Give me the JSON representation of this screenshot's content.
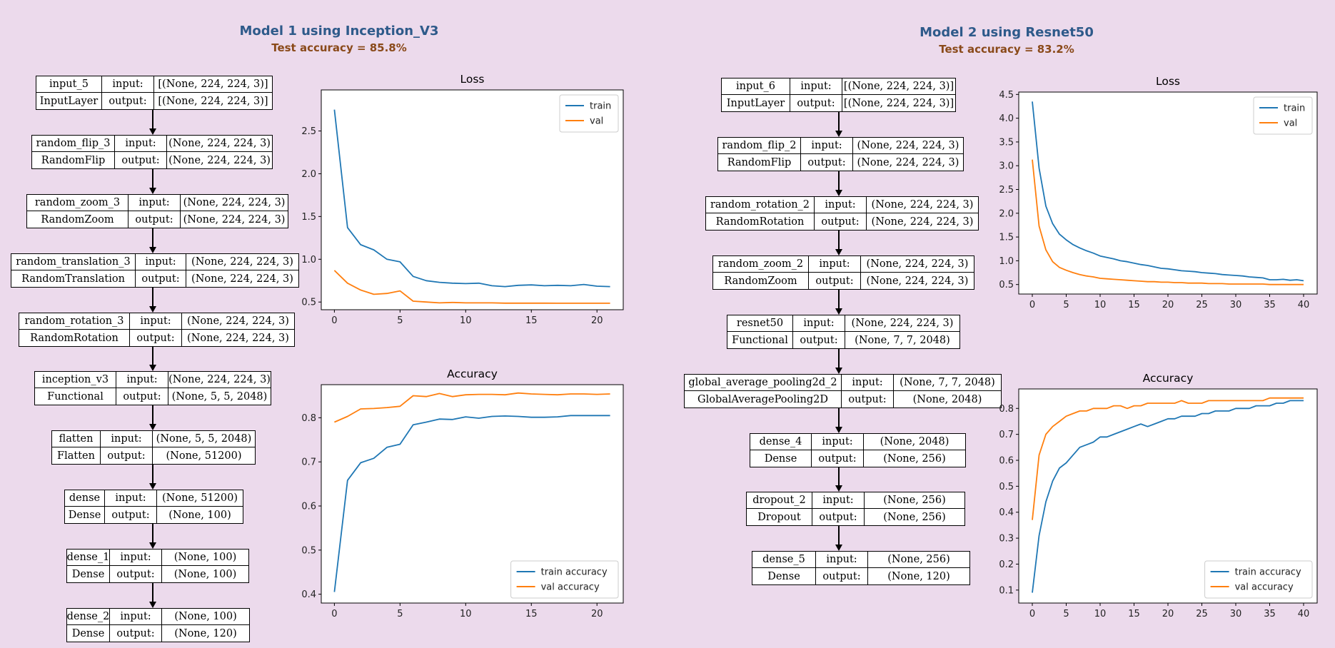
{
  "model1": {
    "title": "Model 1 using Inception_V3",
    "subtitle": "Test accuracy = 85.8%",
    "layers": [
      {
        "name": "input_5",
        "type": "InputLayer",
        "input": "[(None, 224, 224, 3)]",
        "output": "[(None, 224, 224, 3)]"
      },
      {
        "name": "random_flip_3",
        "type": "RandomFlip",
        "input": "(None, 224, 224, 3)",
        "output": "(None, 224, 224, 3)"
      },
      {
        "name": "random_zoom_3",
        "type": "RandomZoom",
        "input": "(None, 224, 224, 3)",
        "output": "(None, 224, 224, 3)"
      },
      {
        "name": "random_translation_3",
        "type": "RandomTranslation",
        "input": "(None, 224, 224, 3)",
        "output": "(None, 224, 224, 3)"
      },
      {
        "name": "random_rotation_3",
        "type": "RandomRotation",
        "input": "(None, 224, 224, 3)",
        "output": "(None, 224, 224, 3)"
      },
      {
        "name": "inception_v3",
        "type": "Functional",
        "input": "(None, 224, 224, 3)",
        "output": "(None, 5, 5, 2048)"
      },
      {
        "name": "flatten",
        "type": "Flatten",
        "input": "(None, 5, 5, 2048)",
        "output": "(None, 51200)"
      },
      {
        "name": "dense",
        "type": "Dense",
        "input": "(None, 51200)",
        "output": "(None, 100)"
      },
      {
        "name": "dense_1",
        "type": "Dense",
        "input": "(None, 100)",
        "output": "(None, 100)"
      },
      {
        "name": "dense_2",
        "type": "Dense",
        "input": "(None, 100)",
        "output": "(None, 120)"
      }
    ]
  },
  "model2": {
    "title": "Model 2 using Resnet50",
    "subtitle": "Test accuracy = 83.2%",
    "layers": [
      {
        "name": "input_6",
        "type": "InputLayer",
        "input": "[(None, 224, 224, 3)]",
        "output": "[(None, 224, 224, 3)]"
      },
      {
        "name": "random_flip_2",
        "type": "RandomFlip",
        "input": "(None, 224, 224, 3)",
        "output": "(None, 224, 224, 3)"
      },
      {
        "name": "random_rotation_2",
        "type": "RandomRotation",
        "input": "(None, 224, 224, 3)",
        "output": "(None, 224, 224, 3)"
      },
      {
        "name": "random_zoom_2",
        "type": "RandomZoom",
        "input": "(None, 224, 224, 3)",
        "output": "(None, 224, 224, 3)"
      },
      {
        "name": "resnet50",
        "type": "Functional",
        "input": "(None, 224, 224, 3)",
        "output": "(None, 7, 7, 2048)"
      },
      {
        "name": "global_average_pooling2d_2",
        "type": "GlobalAveragePooling2D",
        "input": "(None, 7, 7, 2048)",
        "output": "(None, 2048)"
      },
      {
        "name": "dense_4",
        "type": "Dense",
        "input": "(None, 2048)",
        "output": "(None, 256)"
      },
      {
        "name": "dropout_2",
        "type": "Dropout",
        "input": "(None, 256)",
        "output": "(None, 256)"
      },
      {
        "name": "dense_5",
        "type": "Dense",
        "input": "(None, 256)",
        "output": "(None, 120)"
      }
    ]
  },
  "labels": {
    "input": "input:",
    "output": "output:"
  },
  "colors": {
    "train": "#1f77b4",
    "val": "#ff7f0e"
  },
  "chart_data": [
    {
      "type": "line",
      "title": "Loss",
      "xlim": [
        -1,
        22
      ],
      "ylim": [
        0.41,
        2.98
      ],
      "xticks": [
        0,
        5,
        10,
        15,
        20
      ],
      "yticks": [
        0.5,
        1.0,
        1.5,
        2.0,
        2.5
      ],
      "ytick_labels": [
        "0.5",
        "1.0",
        "1.5",
        "2.0",
        "2.5"
      ],
      "legend": "top-right",
      "series": [
        {
          "name": "train",
          "x": [
            0,
            1,
            2,
            3,
            4,
            5,
            6,
            7,
            8,
            9,
            10,
            11,
            12,
            13,
            14,
            15,
            16,
            17,
            18,
            19,
            20,
            21
          ],
          "values": [
            2.75,
            1.37,
            1.17,
            1.11,
            1.0,
            0.97,
            0.8,
            0.75,
            0.73,
            0.72,
            0.715,
            0.72,
            0.69,
            0.68,
            0.695,
            0.7,
            0.69,
            0.695,
            0.69,
            0.705,
            0.685,
            0.68
          ]
        },
        {
          "name": "val",
          "x": [
            0,
            1,
            2,
            3,
            4,
            5,
            6,
            7,
            8,
            9,
            10,
            11,
            12,
            13,
            14,
            15,
            16,
            17,
            18,
            19,
            20,
            21
          ],
          "values": [
            0.87,
            0.72,
            0.64,
            0.59,
            0.6,
            0.63,
            0.51,
            0.5,
            0.49,
            0.495,
            0.49,
            0.49,
            0.49,
            0.487,
            0.487,
            0.487,
            0.487,
            0.486,
            0.486,
            0.486,
            0.486,
            0.486
          ]
        }
      ]
    },
    {
      "type": "line",
      "title": "Accuracy",
      "xlim": [
        -1,
        22
      ],
      "ylim": [
        0.38,
        0.875
      ],
      "xticks": [
        0,
        5,
        10,
        15,
        20
      ],
      "yticks": [
        0.4,
        0.5,
        0.6,
        0.7,
        0.8
      ],
      "ytick_labels": [
        "0.4",
        "0.5",
        "0.6",
        "0.7",
        "0.8"
      ],
      "legend": "bottom-right",
      "series": [
        {
          "name": "train accuracy",
          "x": [
            0,
            1,
            2,
            3,
            4,
            5,
            6,
            7,
            8,
            9,
            10,
            11,
            12,
            13,
            14,
            15,
            16,
            17,
            18,
            19,
            20,
            21
          ],
          "values": [
            0.405,
            0.658,
            0.698,
            0.708,
            0.733,
            0.74,
            0.784,
            0.79,
            0.797,
            0.796,
            0.802,
            0.799,
            0.803,
            0.804,
            0.803,
            0.801,
            0.801,
            0.802,
            0.805,
            0.805,
            0.805,
            0.805
          ]
        },
        {
          "name": "val accuracy",
          "x": [
            0,
            1,
            2,
            3,
            4,
            5,
            6,
            7,
            8,
            9,
            10,
            11,
            12,
            13,
            14,
            15,
            16,
            17,
            18,
            19,
            20,
            21
          ],
          "values": [
            0.79,
            0.803,
            0.82,
            0.821,
            0.823,
            0.826,
            0.85,
            0.848,
            0.855,
            0.848,
            0.852,
            0.853,
            0.853,
            0.852,
            0.856,
            0.854,
            0.853,
            0.852,
            0.854,
            0.854,
            0.853,
            0.854
          ]
        }
      ]
    },
    {
      "type": "line",
      "title": "Loss",
      "xlim": [
        -2,
        42
      ],
      "ylim": [
        0.3,
        4.55
      ],
      "xticks": [
        0,
        5,
        10,
        15,
        20,
        25,
        30,
        35,
        40
      ],
      "yticks": [
        0.5,
        1.0,
        1.5,
        2.0,
        2.5,
        3.0,
        3.5,
        4.0,
        4.5
      ],
      "ytick_labels": [
        "0.5",
        "1.0",
        "1.5",
        "2.0",
        "2.5",
        "3.0",
        "3.5",
        "4.0",
        "4.5"
      ],
      "legend": "top-right",
      "series": [
        {
          "name": "train",
          "x": [
            0,
            1,
            2,
            3,
            4,
            5,
            6,
            7,
            8,
            9,
            10,
            11,
            12,
            13,
            14,
            15,
            16,
            17,
            18,
            19,
            20,
            21,
            22,
            23,
            24,
            25,
            26,
            27,
            28,
            29,
            30,
            31,
            32,
            33,
            34,
            35,
            36,
            37,
            38,
            39,
            40
          ],
          "values": [
            4.35,
            2.95,
            2.15,
            1.78,
            1.56,
            1.44,
            1.34,
            1.27,
            1.21,
            1.16,
            1.1,
            1.07,
            1.04,
            1.0,
            0.98,
            0.95,
            0.92,
            0.9,
            0.87,
            0.84,
            0.83,
            0.81,
            0.79,
            0.78,
            0.77,
            0.75,
            0.74,
            0.73,
            0.71,
            0.7,
            0.69,
            0.68,
            0.66,
            0.65,
            0.64,
            0.6,
            0.6,
            0.61,
            0.59,
            0.6,
            0.58
          ]
        },
        {
          "name": "val",
          "x": [
            0,
            1,
            2,
            3,
            4,
            5,
            6,
            7,
            8,
            9,
            10,
            11,
            12,
            13,
            14,
            15,
            16,
            17,
            18,
            19,
            20,
            21,
            22,
            23,
            24,
            25,
            26,
            27,
            28,
            29,
            30,
            31,
            32,
            33,
            34,
            35,
            36,
            37,
            38,
            39,
            40
          ],
          "values": [
            3.13,
            1.73,
            1.23,
            0.98,
            0.86,
            0.8,
            0.75,
            0.71,
            0.68,
            0.66,
            0.63,
            0.62,
            0.61,
            0.6,
            0.59,
            0.58,
            0.57,
            0.56,
            0.56,
            0.55,
            0.55,
            0.54,
            0.54,
            0.53,
            0.53,
            0.53,
            0.52,
            0.52,
            0.52,
            0.51,
            0.51,
            0.51,
            0.51,
            0.51,
            0.51,
            0.5,
            0.5,
            0.5,
            0.5,
            0.5,
            0.5
          ]
        }
      ]
    },
    {
      "type": "line",
      "title": "Accuracy",
      "xlim": [
        -2,
        42
      ],
      "ylim": [
        0.05,
        0.875
      ],
      "xticks": [
        0,
        5,
        10,
        15,
        20,
        25,
        30,
        35,
        40
      ],
      "yticks": [
        0.1,
        0.2,
        0.3,
        0.4,
        0.5,
        0.6,
        0.7,
        0.8
      ],
      "ytick_labels": [
        "0.1",
        "0.2",
        "0.3",
        "0.4",
        "0.5",
        "0.6",
        "0.7",
        "0.8"
      ],
      "legend": "bottom-right",
      "series": [
        {
          "name": "train accuracy",
          "x": [
            0,
            1,
            2,
            3,
            4,
            5,
            6,
            7,
            8,
            9,
            10,
            11,
            12,
            13,
            14,
            15,
            16,
            17,
            18,
            19,
            20,
            21,
            22,
            23,
            24,
            25,
            26,
            27,
            28,
            29,
            30,
            31,
            32,
            33,
            34,
            35,
            36,
            37,
            38,
            39,
            40
          ],
          "values": [
            0.09,
            0.31,
            0.44,
            0.52,
            0.57,
            0.59,
            0.62,
            0.65,
            0.66,
            0.67,
            0.69,
            0.69,
            0.7,
            0.71,
            0.72,
            0.73,
            0.74,
            0.73,
            0.74,
            0.75,
            0.76,
            0.76,
            0.77,
            0.77,
            0.77,
            0.78,
            0.78,
            0.79,
            0.79,
            0.79,
            0.8,
            0.8,
            0.8,
            0.81,
            0.81,
            0.81,
            0.82,
            0.82,
            0.83,
            0.83,
            0.83
          ]
        },
        {
          "name": "val accuracy",
          "x": [
            0,
            1,
            2,
            3,
            4,
            5,
            6,
            7,
            8,
            9,
            10,
            11,
            12,
            13,
            14,
            15,
            16,
            17,
            18,
            19,
            20,
            21,
            22,
            23,
            24,
            25,
            26,
            27,
            28,
            29,
            30,
            31,
            32,
            33,
            34,
            35,
            36,
            37,
            38,
            39,
            40
          ],
          "values": [
            0.37,
            0.62,
            0.7,
            0.73,
            0.75,
            0.77,
            0.78,
            0.79,
            0.79,
            0.8,
            0.8,
            0.8,
            0.81,
            0.81,
            0.8,
            0.81,
            0.81,
            0.82,
            0.82,
            0.82,
            0.82,
            0.82,
            0.83,
            0.82,
            0.82,
            0.82,
            0.83,
            0.83,
            0.83,
            0.83,
            0.83,
            0.83,
            0.83,
            0.83,
            0.83,
            0.84,
            0.84,
            0.84,
            0.84,
            0.84,
            0.84
          ]
        }
      ]
    }
  ]
}
